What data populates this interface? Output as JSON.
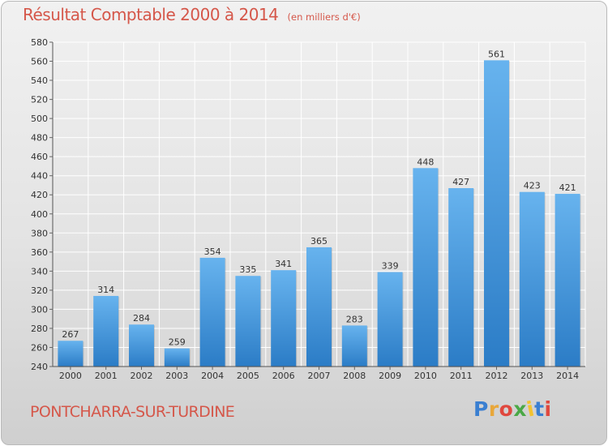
{
  "header": {
    "title": "Résultat Comptable 2000 à 2014",
    "subtitle": "(en milliers d'€)"
  },
  "footer": {
    "commune": "PONTCHARRA-SUR-TURDINE",
    "logo": "Proxiti",
    "logo_colors": [
      "#3a7fd1",
      "#e8a73a",
      "#e0483e",
      "#4aa846",
      "#f2c230",
      "#3a7fd1",
      "#e0483e"
    ]
  },
  "chart_data": {
    "type": "bar",
    "title": "Résultat Comptable 2000 à 2014",
    "subtitle": "(en milliers d'€)",
    "xlabel": "",
    "ylabel": "",
    "categories": [
      "2000",
      "2001",
      "2002",
      "2003",
      "2004",
      "2005",
      "2006",
      "2007",
      "2008",
      "2009",
      "2010",
      "2011",
      "2012",
      "2013",
      "2014"
    ],
    "values": [
      267,
      314,
      284,
      259,
      354,
      335,
      341,
      365,
      283,
      339,
      448,
      427,
      561,
      423,
      421
    ],
    "ylim": [
      240,
      580
    ],
    "yticks": [
      240,
      260,
      280,
      300,
      320,
      340,
      360,
      380,
      400,
      420,
      440,
      460,
      480,
      500,
      520,
      540,
      560,
      580
    ],
    "grid": true,
    "legend": "none",
    "bar_color": "#3d8fd6"
  }
}
